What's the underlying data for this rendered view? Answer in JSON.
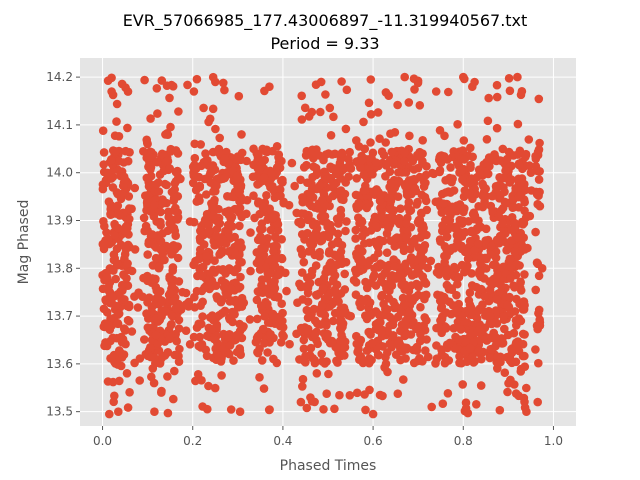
{
  "chart_data": {
    "type": "scatter",
    "title": "EVR_57066985_177.43006897_-11.319940567.txt",
    "subtitle": "Period = 9.33",
    "xlabel": "Phased Times",
    "ylabel": "Mag Phased",
    "xlim": [
      -0.05,
      1.05
    ],
    "ylim": [
      13.47,
      14.24
    ],
    "xticks": [
      "0.0",
      "0.2",
      "0.4",
      "0.6",
      "0.8",
      "1.0"
    ],
    "yticks": [
      "13.5",
      "13.6",
      "13.7",
      "13.8",
      "13.9",
      "14.0",
      "14.1",
      "14.2"
    ],
    "grid": true,
    "marker_color": "#E24A33",
    "background_color": "#E5E5E5",
    "gap_ranges": [
      [
        0.06,
        0.09
      ],
      [
        0.17,
        0.2
      ],
      [
        0.31,
        0.34
      ],
      [
        0.4,
        0.44
      ],
      [
        0.54,
        0.56
      ],
      [
        0.72,
        0.74
      ],
      [
        0.94,
        0.96
      ]
    ],
    "point_count": 2600,
    "dense_band": [
      13.6,
      14.05
    ],
    "outlier_points": [
      {
        "x": 0.015,
        "y": 13.495
      },
      {
        "x": 0.035,
        "y": 13.5
      },
      {
        "x": 0.115,
        "y": 13.5
      },
      {
        "x": 0.145,
        "y": 13.497
      },
      {
        "x": 0.305,
        "y": 13.5
      },
      {
        "x": 0.44,
        "y": 13.52
      },
      {
        "x": 0.49,
        "y": 13.505
      },
      {
        "x": 0.6,
        "y": 13.495
      },
      {
        "x": 0.73,
        "y": 13.51
      },
      {
        "x": 0.81,
        "y": 13.497
      },
      {
        "x": 0.94,
        "y": 13.5
      },
      {
        "x": 0.965,
        "y": 13.52
      },
      {
        "x": 0.02,
        "y": 14.17
      },
      {
        "x": 0.25,
        "y": 14.19
      },
      {
        "x": 0.37,
        "y": 14.18
      },
      {
        "x": 0.485,
        "y": 14.19
      },
      {
        "x": 0.595,
        "y": 14.195
      },
      {
        "x": 0.67,
        "y": 14.2
      },
      {
        "x": 0.74,
        "y": 14.17
      },
      {
        "x": 0.8,
        "y": 14.2
      },
      {
        "x": 0.82,
        "y": 14.18
      },
      {
        "x": 0.92,
        "y": 14.2
      },
      {
        "x": 0.95,
        "y": 14.0
      },
      {
        "x": 0.97,
        "y": 13.93
      },
      {
        "x": 0.975,
        "y": 13.8
      },
      {
        "x": 0.97,
        "y": 13.68
      },
      {
        "x": 0.96,
        "y": 13.63
      },
      {
        "x": 0.1,
        "y": 14.06
      },
      {
        "x": 0.335,
        "y": 14.05
      },
      {
        "x": 0.42,
        "y": 14.02
      }
    ]
  }
}
